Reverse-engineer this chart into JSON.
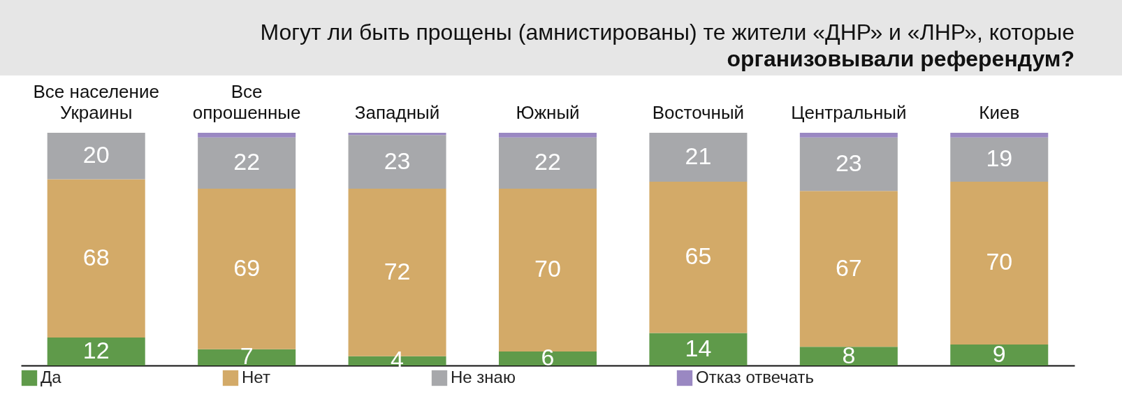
{
  "chart_data": {
    "type": "bar",
    "title": "Могут ли быть прощены (амнистированы) те жители «ДНР» и «ЛНР»,  которые",
    "subtitle": "организовывали референдум?",
    "categories": [
      "Все население Украины",
      "Все опрошенные",
      "Западный",
      "Южный",
      "Восточный",
      "Центральный",
      "Киев"
    ],
    "stacked": true,
    "legend": "bottom",
    "series": [
      {
        "name": "Да",
        "color": "#5f9a4a",
        "values": [
          12,
          7,
          4,
          6,
          14,
          8,
          9
        ],
        "value_labels": [
          "12",
          "7",
          "4",
          "6",
          "14",
          "8",
          "9"
        ]
      },
      {
        "name": "Нет",
        "color": "#d3aa68",
        "values": [
          68,
          69,
          72,
          70,
          65,
          67,
          70
        ],
        "value_labels": [
          "68",
          "69",
          "72",
          "70",
          "65",
          "67",
          "70"
        ]
      },
      {
        "name": "Не знаю",
        "color": "#a7a8ab",
        "values": [
          20,
          22,
          23,
          22,
          21,
          23,
          19
        ],
        "value_labels": [
          "20",
          "22",
          "23",
          "22",
          "21",
          "23",
          "19"
        ]
      },
      {
        "name": "Отказ отвечать",
        "color": "#9a88c2",
        "values": [
          0,
          2,
          1,
          2,
          0,
          2,
          2
        ],
        "value_labels": [
          null,
          null,
          null,
          null,
          null,
          null,
          null
        ]
      }
    ]
  }
}
